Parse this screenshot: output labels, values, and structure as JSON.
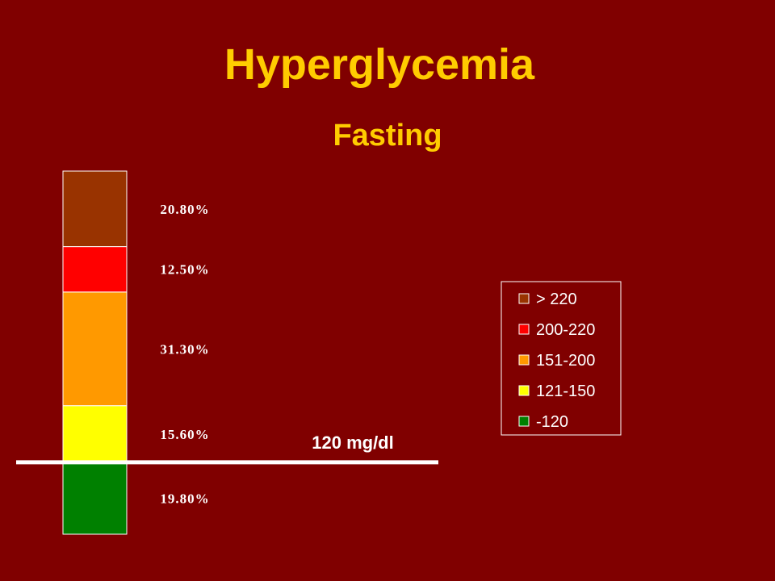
{
  "title": "Hyperglycemia",
  "subtitle": "Fasting",
  "chart_data": {
    "type": "bar",
    "stacked": true,
    "orientation": "vertical",
    "unit": "%",
    "segments_bottom_to_top": [
      {
        "category": "-120",
        "value": 19.8,
        "label": "19.80%",
        "color": "#008000"
      },
      {
        "category": "121-150",
        "value": 15.6,
        "label": "15.60%",
        "color": "#FFFF00"
      },
      {
        "category": "151-200",
        "value": 31.3,
        "label": "31.30%",
        "color": "#FF9900"
      },
      {
        "category": "200-220",
        "value": 12.5,
        "label": "12.50%",
        "color": "#FF0000"
      },
      {
        "category": "> 220",
        "value": 20.8,
        "label": "20.80%",
        "color": "#993300"
      }
    ],
    "legend": {
      "placement": "right",
      "entries": [
        "> 220",
        "200-220",
        "151-200",
        "121-150",
        "-120"
      ]
    },
    "threshold": {
      "label": "120 mg/dl",
      "between": [
        "-120",
        "121-150"
      ],
      "color": "#FFFFFF"
    }
  }
}
